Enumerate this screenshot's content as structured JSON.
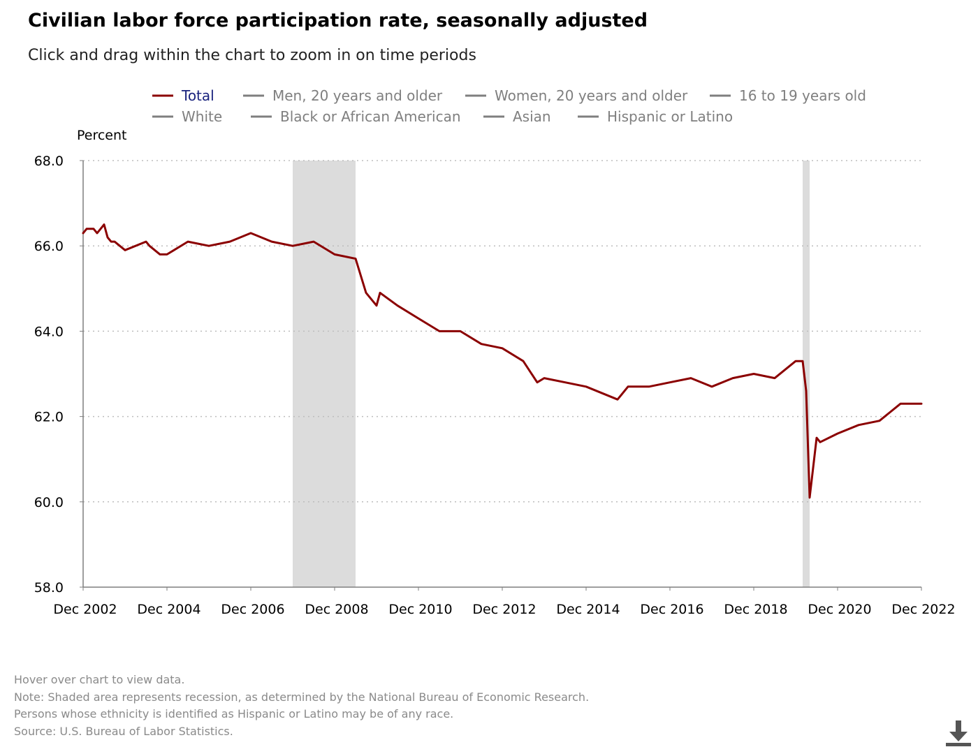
{
  "header": {
    "title": "Civilian labor force participation rate, seasonally adjusted",
    "subtitle": "Click and drag within the chart to zoom in on time periods"
  },
  "footer": {
    "notes": [
      "Hover over chart to view data.",
      "Note: Shaded area represents recession, as determined by the National Bureau of Economic Research.",
      "Persons whose ethnicity is identified as Hispanic or Latino may be of any race.",
      "Source: U.S. Bureau of Labor Statistics."
    ],
    "download_icon": "download-icon"
  },
  "colors": {
    "total_series": "#8b0000",
    "inactive_series": "#7f7f7f",
    "active_legend_text": "#1a237e",
    "inactive_legend_text": "#7f7f7f",
    "recession": "#dcdcdc",
    "grid": "#bdbdbd"
  },
  "chart_data": {
    "type": "line",
    "title": "Civilian labor force participation rate, seasonally adjusted",
    "ylabel": "Percent",
    "xlabel": "",
    "ylim": [
      58.0,
      68.0
    ],
    "yticks": [
      "58.0",
      "60.0",
      "62.0",
      "64.0",
      "66.0",
      "68.0"
    ],
    "xticks": [
      "Dec 2002",
      "Dec 2004",
      "Dec 2006",
      "Dec 2008",
      "Dec 2010",
      "Dec 2012",
      "Dec 2014",
      "Dec 2016",
      "Dec 2018",
      "Dec 2020",
      "Dec 2022"
    ],
    "x_start": "Dec 2002",
    "x_end": "Dec 2022",
    "grid": "horizontal dotted",
    "legend_position": "top",
    "recessions": [
      {
        "start": "Dec 2007",
        "end": "Jun 2009"
      },
      {
        "start": "Feb 2020",
        "end": "Apr 2020"
      }
    ],
    "legend": [
      {
        "name": "Total",
        "active": true
      },
      {
        "name": "Men, 20 years and older",
        "active": false
      },
      {
        "name": "Women, 20 years and older",
        "active": false
      },
      {
        "name": "16 to 19 years old",
        "active": false
      },
      {
        "name": "White",
        "active": false
      },
      {
        "name": "Black or African American",
        "active": false
      },
      {
        "name": "Asian",
        "active": false
      },
      {
        "name": "Hispanic or Latino",
        "active": false
      }
    ],
    "series": [
      {
        "name": "Total",
        "x": [
          "Dec 2002",
          "Jan 2003",
          "Mar 2003",
          "Apr 2003",
          "May 2003",
          "Jun 2003",
          "Jul 2003",
          "Aug 2003",
          "Sep 2003",
          "Dec 2003",
          "Jun 2004",
          "Jul 2004",
          "Oct 2004",
          "Dec 2004",
          "Feb 2005",
          "Jun 2005",
          "Dec 2005",
          "Jun 2006",
          "Dec 2006",
          "Mar 2007",
          "Jun 2007",
          "Dec 2007",
          "Jun 2008",
          "Dec 2008",
          "Jun 2009",
          "Sep 2009",
          "Dec 2009",
          "Jan 2010",
          "Jun 2010",
          "Dec 2010",
          "Jun 2011",
          "Dec 2011",
          "Jun 2012",
          "Dec 2012",
          "Jun 2013",
          "Oct 2013",
          "Dec 2013",
          "Jun 2014",
          "Dec 2014",
          "Sep 2015",
          "Dec 2015",
          "Jun 2016",
          "Dec 2016",
          "Jun 2017",
          "Dec 2017",
          "Jun 2018",
          "Dec 2018",
          "Jun 2019",
          "Dec 2019",
          "Feb 2020",
          "Mar 2020",
          "Apr 2020",
          "Jun 2020",
          "Jul 2020",
          "Dec 2020",
          "Jun 2021",
          "Dec 2021",
          "Jun 2022",
          "Dec 2022"
        ],
        "values": [
          66.3,
          66.4,
          66.4,
          66.3,
          66.4,
          66.5,
          66.2,
          66.1,
          66.1,
          65.9,
          66.1,
          66.0,
          65.8,
          65.8,
          65.9,
          66.1,
          66.0,
          66.1,
          66.3,
          66.2,
          66.1,
          66.0,
          66.1,
          65.8,
          65.7,
          64.9,
          64.6,
          64.9,
          64.6,
          64.3,
          64.0,
          64.0,
          63.7,
          63.6,
          63.3,
          62.8,
          62.9,
          62.8,
          62.7,
          62.4,
          62.7,
          62.7,
          62.8,
          62.9,
          62.7,
          62.9,
          63.0,
          62.9,
          63.3,
          63.3,
          62.6,
          60.1,
          61.5,
          61.4,
          61.6,
          61.8,
          61.9,
          62.3,
          62.3
        ]
      }
    ]
  }
}
